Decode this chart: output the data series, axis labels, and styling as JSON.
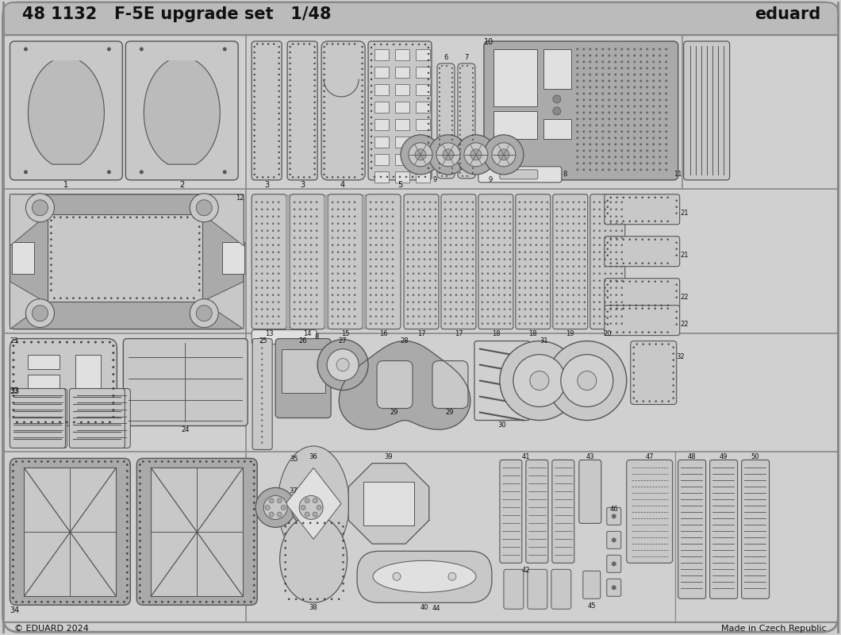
{
  "bg_color": "#d0d0d0",
  "panel_fill": "#c8c8c8",
  "dark_fill": "#aaaaaa",
  "light_fill": "#e0e0e0",
  "edge_color": "#555555",
  "dark_edge": "#333333",
  "title_text": "48 1132   F-5E upgrade set   1/48",
  "brand_text": "eduard",
  "copyright_text": "© EDUARD 2024",
  "made_in_text": "Made in Czech Republic",
  "fig_width": 10.6,
  "fig_height": 8.0,
  "dpi": 100
}
